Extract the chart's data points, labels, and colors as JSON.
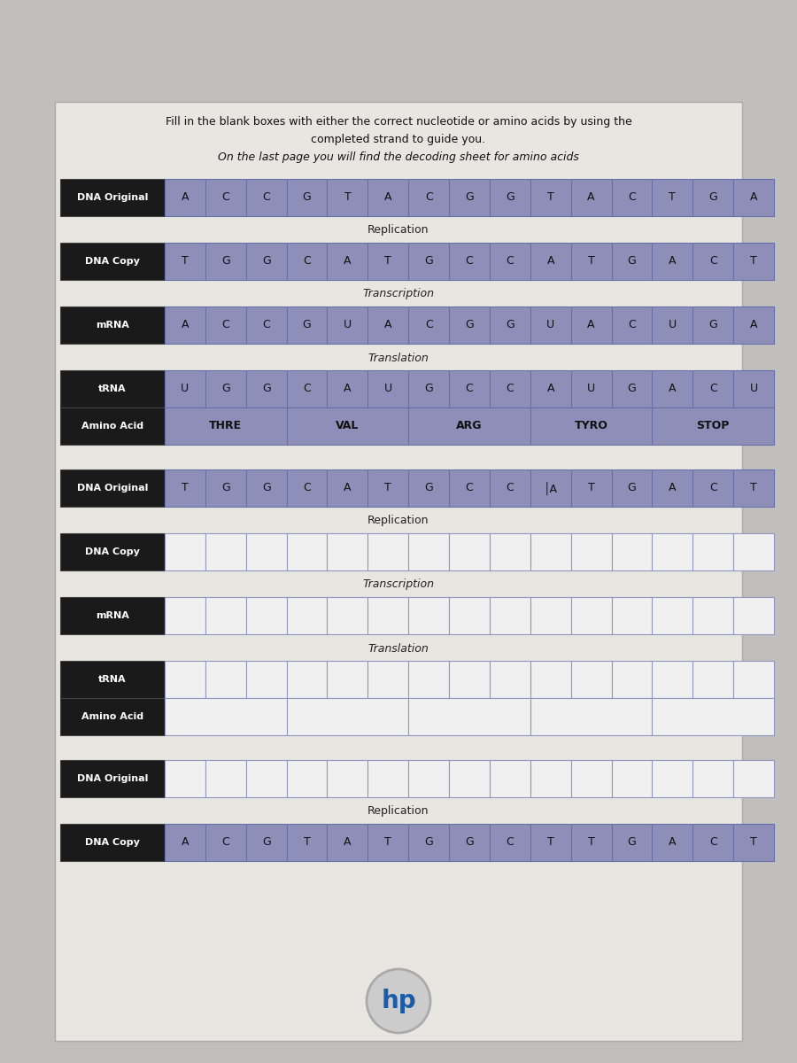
{
  "title_lines": [
    "Fill in the blank boxes with either the correct nucleotide or amino acids by using the",
    "completed strand to guide you.",
    "On the last page you will find the decoding sheet for amino acids"
  ],
  "title_line_styles": [
    "normal",
    "normal",
    "italic"
  ],
  "page_bg": "#c0bfbd",
  "content_bg": "#e8e6e0",
  "label_bg": "#1a1a1a",
  "label_fg": "#ffffff",
  "cell_bg_filled": "#8e8fb8",
  "cell_bg_empty_blue": "#d0d4e8",
  "cell_bg_empty_white": "#f0f0f0",
  "cell_border_filled": "#6670a8",
  "cell_border_empty": "#9098c0",
  "section1": {
    "rows": [
      {
        "label": "DNA Original",
        "cells": [
          "A",
          "C",
          "C",
          "G",
          "T",
          "A",
          "C",
          "G",
          "G",
          "T",
          "A",
          "C",
          "T",
          "G",
          "A"
        ],
        "filled": true
      },
      {
        "label": "DNA Copy",
        "cells": [
          "T",
          "G",
          "G",
          "C",
          "A",
          "T",
          "G",
          "C",
          "C",
          "A",
          "T",
          "G",
          "A",
          "C",
          "T"
        ],
        "filled": true
      },
      {
        "label": "mRNA",
        "cells": [
          "A",
          "C",
          "C",
          "G",
          "U",
          "A",
          "C",
          "G",
          "G",
          "U",
          "A",
          "C",
          "U",
          "G",
          "A"
        ],
        "filled": true
      },
      {
        "label": "tRNA",
        "cells": [
          "U",
          "G",
          "G",
          "C",
          "A",
          "U",
          "G",
          "C",
          "C",
          "A",
          "U",
          "G",
          "A",
          "C",
          "U"
        ],
        "filled": true
      },
      {
        "label": "Amino Acid",
        "cells": [
          "THRE",
          "VAL",
          "ARG",
          "TYRO",
          "STOP"
        ],
        "filled": true,
        "merged": true
      }
    ],
    "spacers": [
      "Replication",
      "Transcription",
      "Translation",
      null
    ]
  },
  "section2": {
    "rows": [
      {
        "label": "DNA Original",
        "cells": [
          "T",
          "G",
          "G",
          "C",
          "A",
          "T",
          "G",
          "C",
          "C",
          "│A",
          "T",
          "G",
          "A",
          "C",
          "T"
        ],
        "filled": true
      },
      {
        "label": "DNA Copy",
        "cells": [
          "",
          "",
          "",
          "",
          "",
          "",
          "",
          "",
          "",
          "",
          "",
          "",
          "",
          "",
          ""
        ],
        "filled": false,
        "empty_style": "white"
      },
      {
        "label": "mRNA",
        "cells": [
          "",
          "",
          "",
          "",
          "",
          "",
          "",
          "",
          "",
          "",
          "",
          "",
          "",
          "",
          ""
        ],
        "filled": false,
        "empty_style": "white"
      },
      {
        "label": "tRNA",
        "cells": [
          "",
          "",
          "",
          "",
          "",
          "",
          "",
          "",
          "",
          "",
          "",
          "",
          "",
          "",
          ""
        ],
        "filled": false,
        "empty_style": "white"
      },
      {
        "label": "Amino Acid",
        "cells": [
          "",
          "",
          "",
          "",
          ""
        ],
        "filled": false,
        "merged": true,
        "empty_style": "white"
      }
    ],
    "spacers": [
      "Replication",
      "Transcription",
      "Translation",
      null
    ]
  },
  "section3": {
    "rows": [
      {
        "label": "DNA Original",
        "cells": [
          "",
          "",
          "",
          "",
          "",
          "",
          "",
          "",
          "",
          "",
          "",
          "",
          "",
          "",
          ""
        ],
        "filled": false,
        "empty_style": "white"
      },
      {
        "label": "DNA Copy",
        "cells": [
          "A",
          "C",
          "G",
          "T",
          "A",
          "T",
          "G",
          "G",
          "C",
          "T",
          "T",
          "G",
          "A",
          "C",
          "T"
        ],
        "filled": true
      }
    ],
    "spacers": [
      "Replication"
    ]
  },
  "num_cells": 15
}
